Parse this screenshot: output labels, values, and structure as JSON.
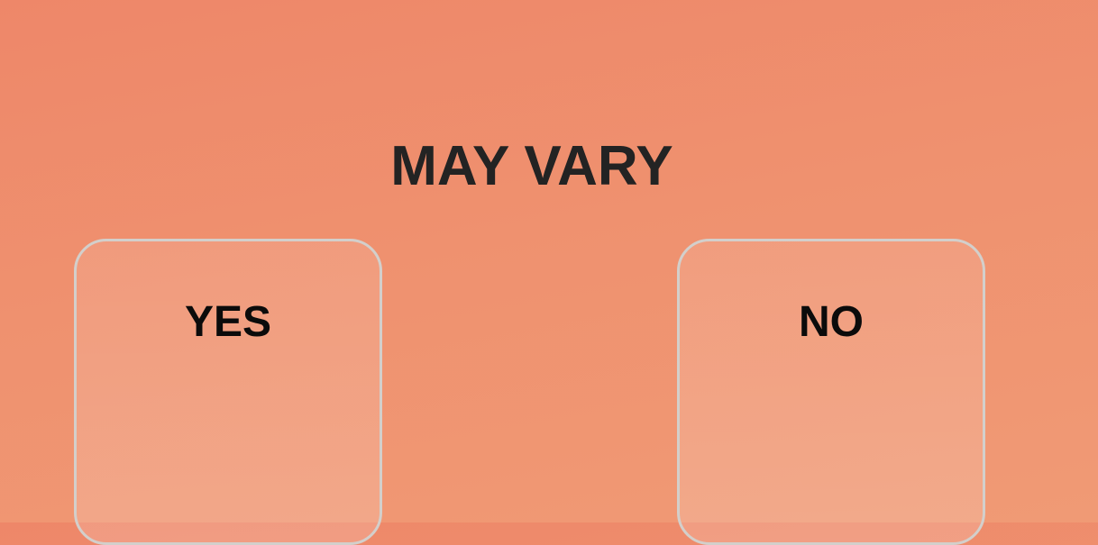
{
  "question": {
    "title": "MAY VARY"
  },
  "options": [
    {
      "label": "YES"
    },
    {
      "label": "NO"
    }
  ],
  "colors": {
    "background_top": "#ee8769",
    "background_bottom": "#f09a75",
    "card_border": "#d3cfcb",
    "title_text": "#232323",
    "option_text": "#0b0b0b"
  }
}
